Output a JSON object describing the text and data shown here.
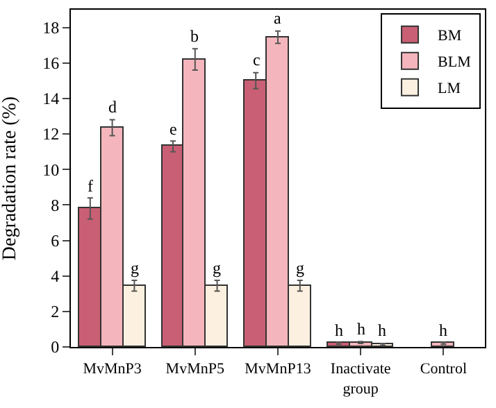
{
  "chart_data": {
    "type": "bar",
    "ylabel": "Degradation rate (%)",
    "categories": [
      "MvMnP3",
      "MvMnP5",
      "MvMnP13",
      "Inactivate group",
      "Control"
    ],
    "series": [
      {
        "name": "BM",
        "color": "#c95f74",
        "values": [
          7.8,
          11.3,
          15.0,
          0.2,
          null
        ],
        "errors": [
          0.6,
          0.3,
          0.45,
          0.05,
          null
        ],
        "value_labels": [
          "f",
          "e",
          "c",
          "h",
          null
        ]
      },
      {
        "name": "BLM",
        "color": "#f4b6bc",
        "values": [
          12.35,
          16.2,
          17.45,
          0.25,
          0.2
        ],
        "errors": [
          0.45,
          0.6,
          0.35,
          0.05,
          0.05
        ],
        "value_labels": [
          "d",
          "b",
          "a",
          "h",
          "h"
        ]
      },
      {
        "name": "LM",
        "color": "#fcf0e0",
        "values": [
          3.45,
          3.45,
          3.45,
          0.15,
          null
        ],
        "errors": [
          0.3,
          0.3,
          0.3,
          0.05,
          null
        ],
        "value_labels": [
          "g",
          "g",
          "g",
          "h",
          null
        ]
      }
    ],
    "ylim": [
      0,
      19
    ],
    "yticks": [
      0,
      2,
      4,
      6,
      8,
      10,
      12,
      14,
      16,
      18
    ],
    "legend": "top right"
  }
}
